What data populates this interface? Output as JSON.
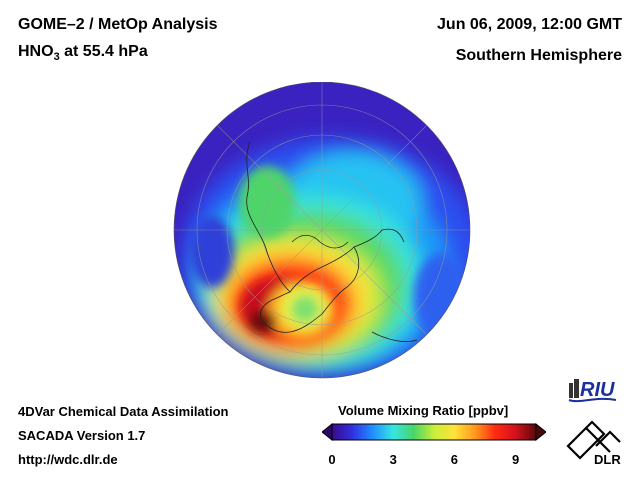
{
  "header": {
    "title": "GOME–2 / MetOp Analysis",
    "species": "HNO",
    "species_sub": "3",
    "pressure": " at 55.4 hPa",
    "datetime": "Jun 06, 2009, 12:00 GMT",
    "hemisphere": "Southern Hemisphere"
  },
  "footer": {
    "line1": "4DVar Chemical Data Assimilation",
    "line2": "SACADA Version 1.7",
    "line3": "http://wdc.dlr.de"
  },
  "colorbar": {
    "title": "Volume Mixing Ratio [ppbv]",
    "ticks": [
      "0",
      "3",
      "6",
      "9"
    ],
    "tick_values": [
      0,
      3,
      6,
      9
    ],
    "range": [
      0,
      10
    ],
    "colors": [
      "#3a0a8c",
      "#3030e0",
      "#1f8fff",
      "#36e6e0",
      "#4ad46a",
      "#c8ee3a",
      "#ffe23a",
      "#ff9a1e",
      "#ff2a12",
      "#d2121c",
      "#5a0a0a"
    ]
  },
  "logos": {
    "riu": "RIU",
    "dlr": "DLR"
  }
}
